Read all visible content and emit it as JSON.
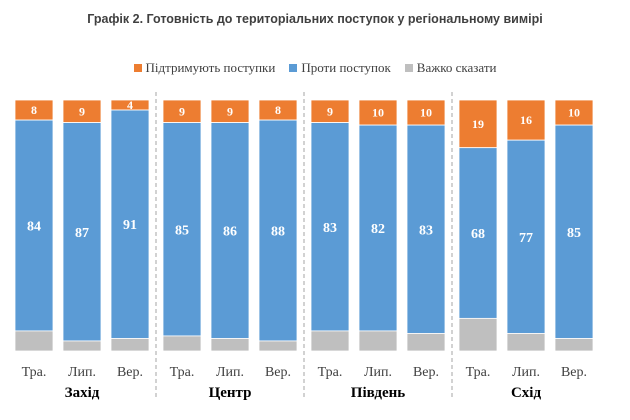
{
  "chart_data": {
    "type": "bar",
    "stacked": true,
    "title": "Графік 2. Готовність до територіальних поступок у регіональному вимірі",
    "legend_position": "top",
    "grid": false,
    "ylim": [
      0,
      100
    ],
    "series": [
      {
        "name": "Підтримують поступки",
        "color": "#ED7D31",
        "values": [
          8,
          9,
          4,
          9,
          9,
          8,
          9,
          10,
          10,
          19,
          16,
          10
        ]
      },
      {
        "name": "Проти поступок",
        "color": "#5B9BD5",
        "values": [
          84,
          87,
          91,
          85,
          86,
          88,
          83,
          82,
          83,
          68,
          77,
          85
        ]
      },
      {
        "name": "Важко сказати",
        "color": "#BFBFBF",
        "values": [
          8,
          4,
          5,
          6,
          5,
          4,
          8,
          8,
          7,
          13,
          7,
          5
        ]
      }
    ],
    "groups": [
      {
        "name": "Захід",
        "categories": [
          "Тра.",
          "Лип.",
          "Вер."
        ]
      },
      {
        "name": "Центр",
        "categories": [
          "Тра.",
          "Лип.",
          "Вер."
        ]
      },
      {
        "name": "Південь",
        "categories": [
          "Тра.",
          "Лип.",
          "Вер."
        ]
      },
      {
        "name": "Схід",
        "categories": [
          "Тра.",
          "Лип.",
          "Вер."
        ]
      }
    ]
  }
}
